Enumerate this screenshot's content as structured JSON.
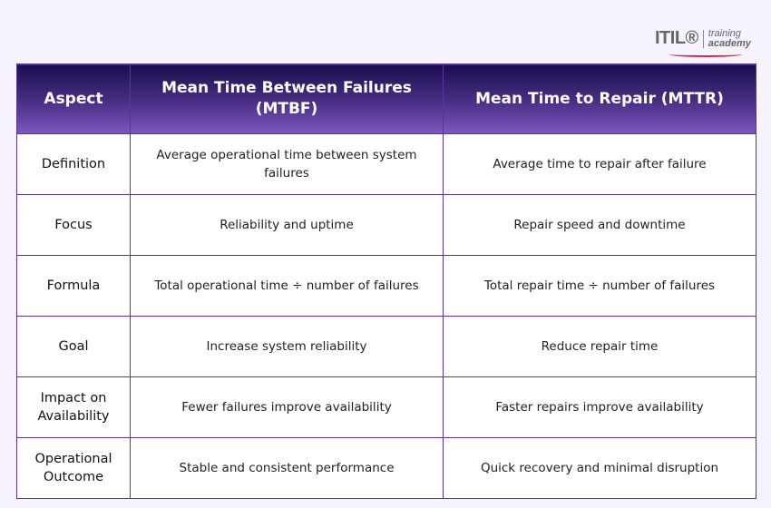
{
  "logo": {
    "brand": "ITIL®",
    "line1": "training",
    "line2": "academy"
  },
  "header": [
    "Aspect",
    "Mean Time Between Failures (MTBF)",
    "Mean Time to Repair (MTTR)"
  ],
  "rows": [
    [
      "Definition",
      "Average operational time between system failures",
      "Average time to repair after failure"
    ],
    [
      "Focus",
      "Reliability and uptime",
      "Repair speed and downtime"
    ],
    [
      "Formula",
      "Total operational time ÷ number of failures",
      "Total repair time ÷ number of failures"
    ],
    [
      "Goal",
      "Increase system reliability",
      "Reduce repair time"
    ],
    [
      "Impact on Availability",
      "Fewer failures improve availability",
      "Faster repairs improve availability"
    ],
    [
      "Operational Outcome",
      "Stable and consistent performance",
      "Quick recovery and minimal disruption"
    ]
  ]
}
